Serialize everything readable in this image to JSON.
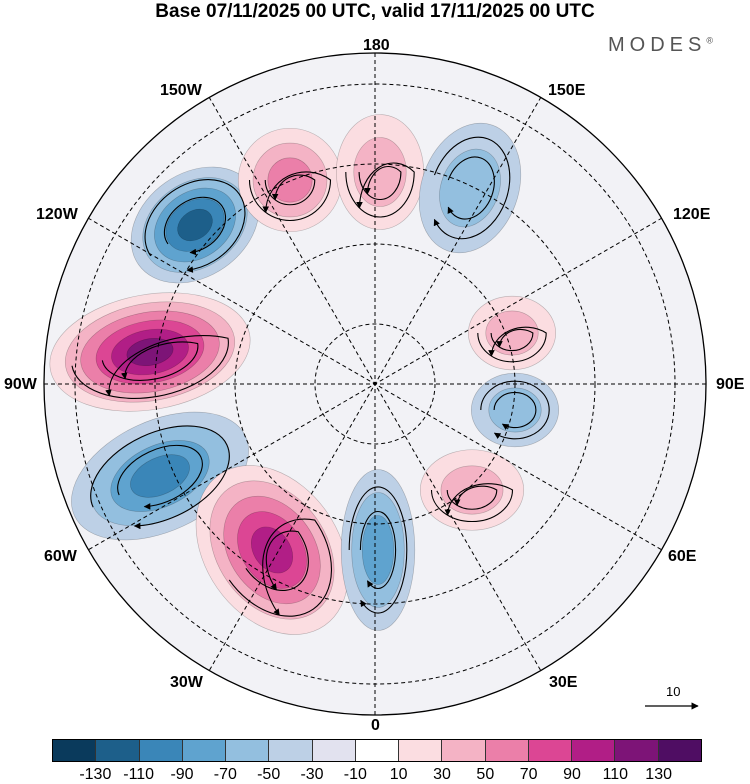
{
  "header": {
    "title": "Base 07/11/2025 00 UTC, valid 17/11/2025 00 UTC",
    "brand": "MODES",
    "brand_mark": "®"
  },
  "map": {
    "projection_labels": {
      "top": "180",
      "bottom": "0",
      "left": "90W",
      "right": "90E",
      "upper_left": "150W",
      "upper_right": "150E",
      "mid_left": "120W",
      "mid_right": "120E",
      "lower_left": "60W",
      "lower_right": "60E",
      "bottom_left": "30W",
      "bottom_right": "30E"
    },
    "anomalies": [
      {
        "name": "positive-anomaly",
        "level": 130
      },
      {
        "name": "negative-anomaly",
        "level": -90
      },
      {
        "name": "negative-anomaly",
        "level": -110
      },
      {
        "name": "positive-anomaly",
        "level": 110
      },
      {
        "name": "negative-anomaly",
        "level": -70
      },
      {
        "name": "positive-anomaly",
        "level": 70
      },
      {
        "name": "positive-anomaly",
        "level": 50
      },
      {
        "name": "negative-anomaly",
        "level": -50
      },
      {
        "name": "positive-anomaly",
        "level": 50
      },
      {
        "name": "negative-anomaly",
        "level": -50
      },
      {
        "name": "positive-anomaly",
        "level": 50
      }
    ]
  },
  "reference_vector": {
    "value": "10"
  },
  "colorbar": {
    "colors": [
      "#0a3a5c",
      "#1d5f8a",
      "#3a86b8",
      "#5fa3cf",
      "#93bfdf",
      "#bdd0e6",
      "#e2e2ef",
      "#ffffff",
      "#fbdde1",
      "#f4b3c5",
      "#eb7fa9",
      "#dc4694",
      "#b11e86",
      "#7d1477",
      "#4f0d63"
    ],
    "ticks": [
      "-130",
      "-110",
      "-90",
      "-70",
      "-50",
      "-30",
      "-10",
      "10",
      "30",
      "50",
      "70",
      "90",
      "110",
      "130"
    ]
  }
}
